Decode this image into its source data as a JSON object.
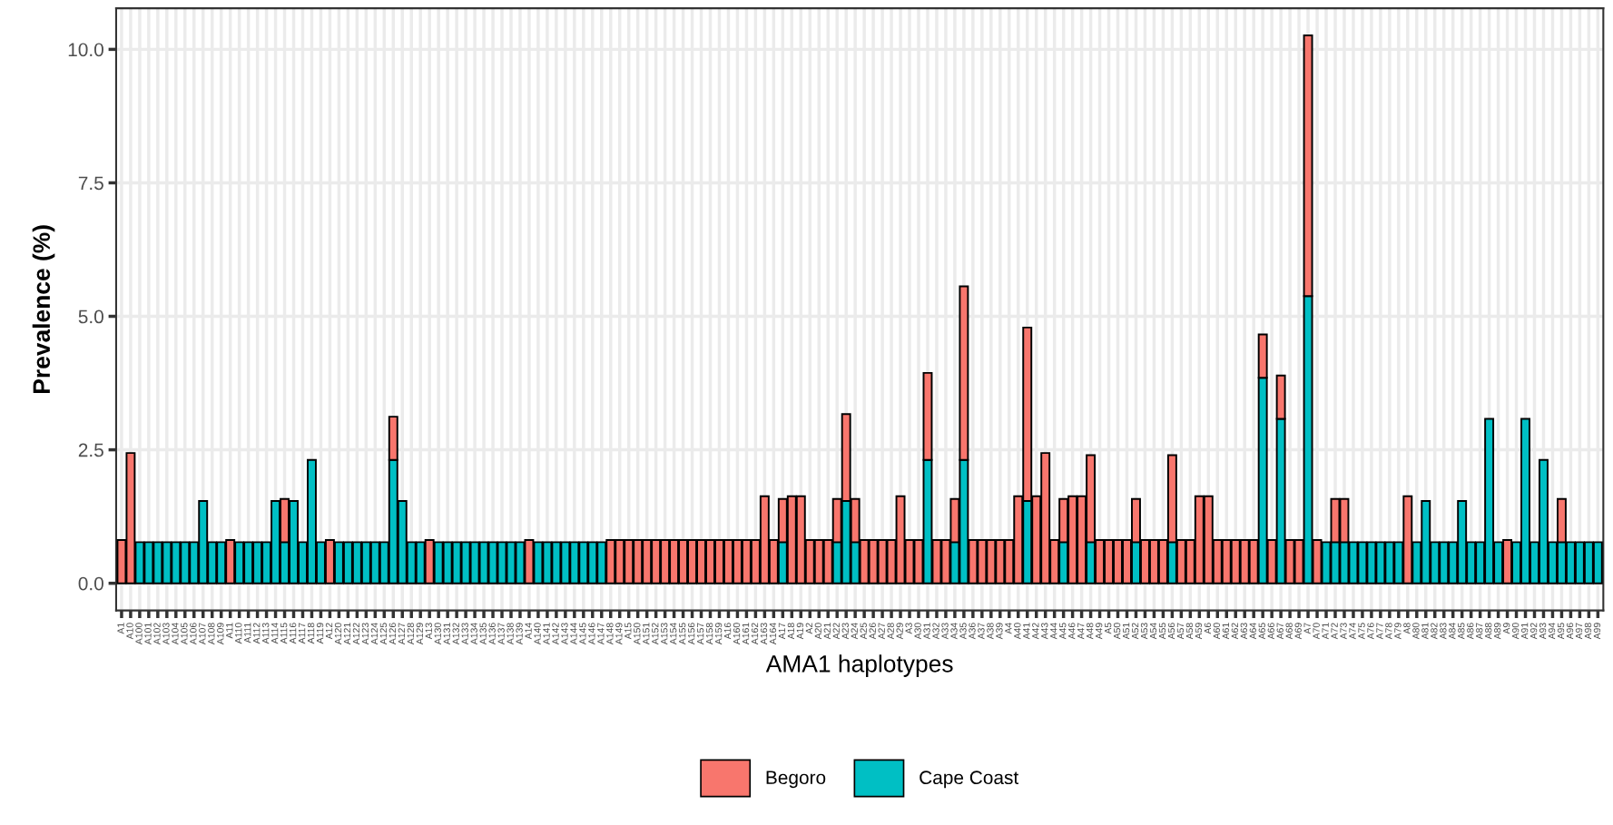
{
  "chart_data": {
    "type": "bar",
    "stacked": true,
    "xlabel": "AMA1 haplotypes",
    "ylabel": "Prevalence (%)",
    "categories": [
      "A1",
      "A10",
      "A100",
      "A101",
      "A102",
      "A103",
      "A104",
      "A105",
      "A106",
      "A107",
      "A108",
      "A109",
      "A11",
      "A110",
      "A111",
      "A112",
      "A113",
      "A114",
      "A115",
      "A116",
      "A117",
      "A118",
      "A119",
      "A12",
      "A120",
      "A121",
      "A122",
      "A123",
      "A124",
      "A125",
      "A126",
      "A127",
      "A128",
      "A129",
      "A13",
      "A130",
      "A131",
      "A132",
      "A133",
      "A134",
      "A135",
      "A136",
      "A137",
      "A138",
      "A139",
      "A14",
      "A140",
      "A141",
      "A142",
      "A143",
      "A144",
      "A145",
      "A146",
      "A147",
      "A148",
      "A149",
      "A15",
      "A150",
      "A151",
      "A152",
      "A153",
      "A154",
      "A155",
      "A156",
      "A157",
      "A158",
      "A159",
      "A16",
      "A160",
      "A161",
      "A162",
      "A163",
      "A164",
      "A17",
      "A18",
      "A19",
      "A2",
      "A20",
      "A21",
      "A22",
      "A23",
      "A24",
      "A25",
      "A26",
      "A27",
      "A28",
      "A29",
      "A3",
      "A30",
      "A31",
      "A32",
      "A33",
      "A34",
      "A35",
      "A36",
      "A37",
      "A38",
      "A39",
      "A4",
      "A40",
      "A41",
      "A42",
      "A43",
      "A44",
      "A45",
      "A46",
      "A47",
      "A48",
      "A49",
      "A5",
      "A50",
      "A51",
      "A52",
      "A53",
      "A54",
      "A55",
      "A56",
      "A57",
      "A58",
      "A59",
      "A6",
      "A60",
      "A61",
      "A62",
      "A63",
      "A64",
      "A65",
      "A66",
      "A67",
      "A68",
      "A69",
      "A7",
      "A70",
      "A71",
      "A72",
      "A73",
      "A74",
      "A75",
      "A76",
      "A77",
      "A78",
      "A79",
      "A8",
      "A80",
      "A81",
      "A82",
      "A83",
      "A84",
      "A85",
      "A86",
      "A87",
      "A88",
      "A89",
      "A9",
      "A90",
      "A91",
      "A92",
      "A93",
      "A94",
      "A95",
      "A96",
      "A97",
      "A98",
      "A99"
    ],
    "series": [
      {
        "name": "Cape Coast",
        "color": "#00bfc4",
        "values": [
          null,
          null,
          0.77,
          0.77,
          0.77,
          0.77,
          0.77,
          0.77,
          0.77,
          1.54,
          0.77,
          0.77,
          null,
          0.77,
          0.77,
          0.77,
          0.77,
          1.54,
          0.77,
          1.54,
          0.77,
          2.31,
          0.77,
          null,
          0.77,
          0.77,
          0.77,
          0.77,
          0.77,
          0.77,
          2.31,
          1.54,
          0.77,
          0.77,
          null,
          0.77,
          0.77,
          0.77,
          0.77,
          0.77,
          0.77,
          0.77,
          0.77,
          0.77,
          0.77,
          null,
          0.77,
          0.77,
          0.77,
          0.77,
          0.77,
          0.77,
          0.77,
          0.77,
          null,
          null,
          null,
          null,
          null,
          null,
          null,
          null,
          null,
          null,
          null,
          null,
          null,
          null,
          null,
          null,
          null,
          null,
          null,
          0.77,
          null,
          null,
          null,
          null,
          null,
          0.77,
          1.54,
          0.77,
          null,
          null,
          null,
          null,
          null,
          null,
          null,
          2.31,
          null,
          null,
          0.77,
          2.31,
          null,
          null,
          null,
          null,
          null,
          null,
          1.54,
          null,
          null,
          null,
          0.77,
          null,
          null,
          0.77,
          null,
          null,
          null,
          null,
          0.77,
          null,
          null,
          null,
          0.77,
          null,
          null,
          null,
          null,
          null,
          null,
          null,
          null,
          null,
          3.85,
          null,
          3.08,
          null,
          null,
          5.38,
          null,
          0.77,
          0.77,
          0.77,
          0.77,
          0.77,
          0.77,
          0.77,
          0.77,
          0.77,
          null,
          0.77,
          1.54,
          0.77,
          0.77,
          0.77,
          1.54,
          0.77,
          0.77,
          3.08,
          0.77,
          null,
          0.77,
          3.08,
          0.77,
          2.31,
          0.77,
          0.77,
          0.77,
          0.77,
          0.77,
          0.77
        ]
      },
      {
        "name": "Begoro",
        "color": "#f8766d",
        "values": [
          0.81,
          2.44,
          null,
          null,
          null,
          null,
          null,
          null,
          null,
          null,
          null,
          null,
          0.81,
          null,
          null,
          null,
          null,
          null,
          0.81,
          null,
          null,
          null,
          null,
          0.81,
          null,
          null,
          null,
          null,
          null,
          null,
          0.81,
          null,
          null,
          null,
          0.81,
          null,
          null,
          null,
          null,
          null,
          null,
          null,
          null,
          null,
          null,
          0.81,
          null,
          null,
          null,
          null,
          null,
          null,
          null,
          null,
          0.81,
          0.81,
          0.81,
          0.81,
          0.81,
          0.81,
          0.81,
          0.81,
          0.81,
          0.81,
          0.81,
          0.81,
          0.81,
          0.81,
          0.81,
          0.81,
          0.81,
          1.63,
          0.81,
          0.81,
          1.63,
          1.63,
          0.81,
          0.81,
          0.81,
          0.81,
          1.63,
          0.81,
          0.81,
          0.81,
          0.81,
          0.81,
          1.63,
          0.81,
          0.81,
          1.63,
          0.81,
          0.81,
          0.81,
          3.25,
          0.81,
          0.81,
          0.81,
          0.81,
          0.81,
          1.63,
          3.25,
          1.63,
          2.44,
          0.81,
          0.81,
          1.63,
          1.63,
          1.63,
          0.81,
          0.81,
          0.81,
          0.81,
          0.81,
          0.81,
          0.81,
          0.81,
          1.63,
          0.81,
          0.81,
          1.63,
          1.63,
          0.81,
          0.81,
          0.81,
          0.81,
          0.81,
          0.81,
          0.81,
          0.81,
          0.81,
          0.81,
          4.88,
          0.81,
          null,
          0.81,
          0.81,
          null,
          null,
          null,
          null,
          null,
          null,
          1.63,
          null,
          null,
          null,
          null,
          null,
          null,
          null,
          null,
          null,
          null,
          0.81,
          null,
          null,
          null,
          null,
          null,
          0.81,
          null,
          null,
          null,
          null
        ]
      }
    ],
    "ylim": [
      -0.51,
      10.77
    ],
    "yticks": [
      {
        "value": 0,
        "label": "0.0"
      },
      {
        "value": 2.5,
        "label": "2.5"
      },
      {
        "value": 5,
        "label": "5.0"
      },
      {
        "value": 7.5,
        "label": "7.5"
      },
      {
        "value": 10,
        "label": "10.0"
      }
    ],
    "grid": true,
    "legend": "bottom"
  }
}
